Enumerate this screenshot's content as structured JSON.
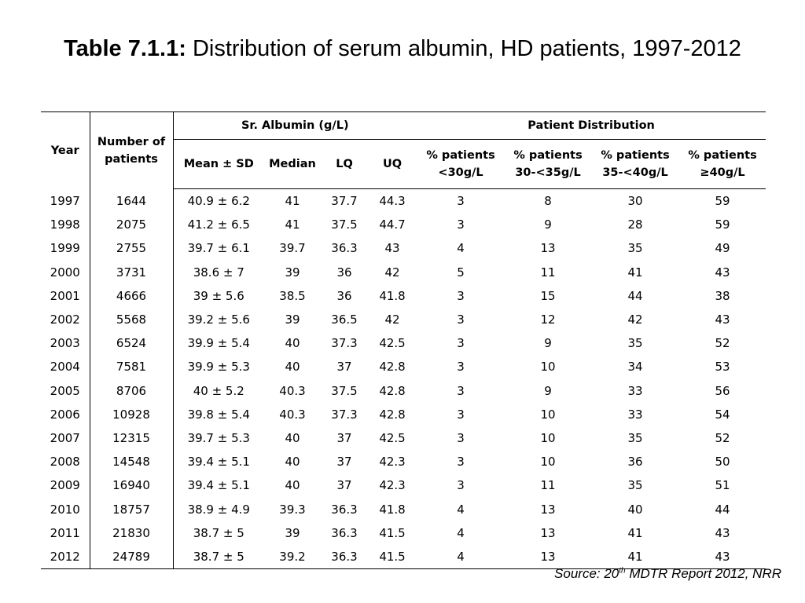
{
  "title": {
    "label": "Table 7.1.1:",
    "text": "Distribution of serum albumin, HD patients, 1997-2012"
  },
  "headers": {
    "year": "Year",
    "number": "Number of patients",
    "group_albumin": "Sr. Albumin (g/L)",
    "group_distribution": "Patient Distribution",
    "mean": "Mean ± SD",
    "median": "Median",
    "lq": "LQ",
    "uq": "UQ",
    "p30": "% patients <30g/L",
    "p30_35": "% patients 30-<35g/L",
    "p35_40": "% patients 35-<40g/L",
    "p40": "% patients ≥40g/L"
  },
  "rows": [
    [
      "1997",
      "1644",
      "40.9 ± 6.2",
      "41",
      "37.7",
      "44.3",
      "3",
      "8",
      "30",
      "59"
    ],
    [
      "1998",
      "2075",
      "41.2 ± 6.5",
      "41",
      "37.5",
      "44.7",
      "3",
      "9",
      "28",
      "59"
    ],
    [
      "1999",
      "2755",
      "39.7 ± 6.1",
      "39.7",
      "36.3",
      "43",
      "4",
      "13",
      "35",
      "49"
    ],
    [
      "2000",
      "3731",
      "38.6 ± 7",
      "39",
      "36",
      "42",
      "5",
      "11",
      "41",
      "43"
    ],
    [
      "2001",
      "4666",
      "39 ± 5.6",
      "38.5",
      "36",
      "41.8",
      "3",
      "15",
      "44",
      "38"
    ],
    [
      "2002",
      "5568",
      "39.2 ± 5.6",
      "39",
      "36.5",
      "42",
      "3",
      "12",
      "42",
      "43"
    ],
    [
      "2003",
      "6524",
      "39.9 ± 5.4",
      "40",
      "37.3",
      "42.5",
      "3",
      "9",
      "35",
      "52"
    ],
    [
      "2004",
      "7581",
      "39.9 ± 5.3",
      "40",
      "37",
      "42.8",
      "3",
      "10",
      "34",
      "53"
    ],
    [
      "2005",
      "8706",
      "40 ± 5.2",
      "40.3",
      "37.5",
      "42.8",
      "3",
      "9",
      "33",
      "56"
    ],
    [
      "2006",
      "10928",
      "39.8 ± 5.4",
      "40.3",
      "37.3",
      "42.8",
      "3",
      "10",
      "33",
      "54"
    ],
    [
      "2007",
      "12315",
      "39.7 ± 5.3",
      "40",
      "37",
      "42.5",
      "3",
      "10",
      "35",
      "52"
    ],
    [
      "2008",
      "14548",
      "39.4 ± 5.1",
      "40",
      "37",
      "42.3",
      "3",
      "10",
      "36",
      "50"
    ],
    [
      "2009",
      "16940",
      "39.4 ± 5.1",
      "40",
      "37",
      "42.3",
      "3",
      "11",
      "35",
      "51"
    ],
    [
      "2010",
      "18757",
      "38.9 ± 4.9",
      "39.3",
      "36.3",
      "41.8",
      "4",
      "13",
      "40",
      "44"
    ],
    [
      "2011",
      "21830",
      "38.7 ± 5",
      "39",
      "36.3",
      "41.5",
      "4",
      "13",
      "41",
      "43"
    ],
    [
      "2012",
      "24789",
      "38.7 ± 5",
      "39.2",
      "36.3",
      "41.5",
      "4",
      "13",
      "41",
      "43"
    ]
  ],
  "source": {
    "prefix": "Source: 20",
    "sup": "th",
    "suffix": " MDTR Report 2012, NRR"
  }
}
